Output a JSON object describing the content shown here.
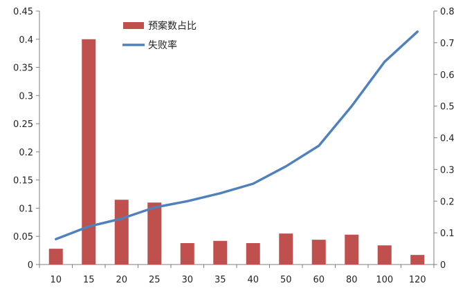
{
  "chart_data": {
    "type": "bar+line",
    "categories": [
      "10",
      "15",
      "20",
      "25",
      "30",
      "35",
      "40",
      "50",
      "60",
      "80",
      "100",
      "120"
    ],
    "series": [
      {
        "name": "预案数占比",
        "type": "bar",
        "axis": "left",
        "color": "#c0504d",
        "values": [
          0.028,
          0.4,
          0.115,
          0.11,
          0.038,
          0.042,
          0.038,
          0.055,
          0.044,
          0.053,
          0.034,
          0.017
        ]
      },
      {
        "name": "失败率",
        "type": "line",
        "axis": "right",
        "color": "#4f81bd",
        "values": [
          0.08,
          0.12,
          0.145,
          0.18,
          0.2,
          0.225,
          0.255,
          0.31,
          0.375,
          0.5,
          0.64,
          0.735
        ]
      }
    ],
    "y_left": {
      "range": [
        0,
        0.45
      ],
      "ticks": [
        "0",
        "0.05",
        "0.1",
        "0.15",
        "0.2",
        "0.25",
        "0.3",
        "0.35",
        "0.4",
        "0.45"
      ]
    },
    "y_right": {
      "range": [
        0,
        0.8
      ],
      "ticks": [
        "0",
        "0.1",
        "0.2",
        "0.3",
        "0.4",
        "0.5",
        "0.6",
        "0.7",
        "0.8"
      ]
    },
    "grid": false,
    "legend_position": "top-center"
  }
}
